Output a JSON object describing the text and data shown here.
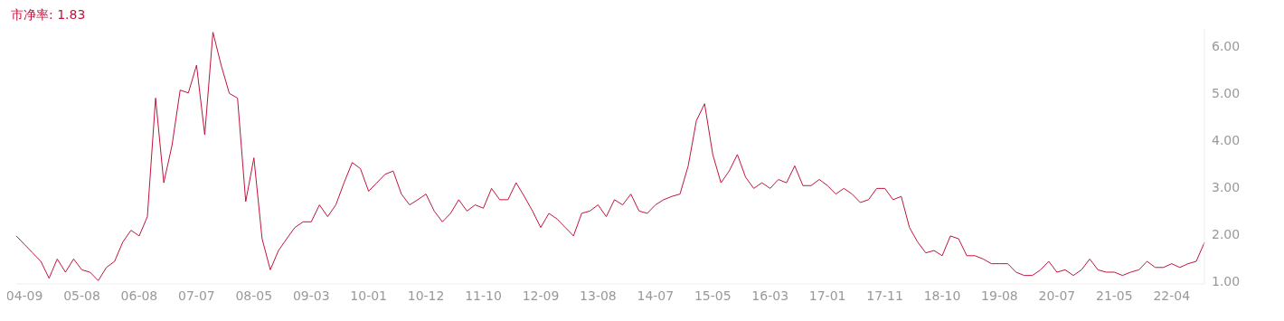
{
  "chart_data": {
    "type": "line",
    "title": "市净率: 1.83",
    "categories": [
      null,
      "04-09",
      null,
      null,
      null,
      null,
      null,
      null,
      "05-08",
      null,
      null,
      null,
      null,
      null,
      null,
      "06-08",
      null,
      null,
      null,
      null,
      null,
      null,
      "07-07",
      null,
      null,
      null,
      null,
      null,
      null,
      "08-05",
      null,
      null,
      null,
      null,
      null,
      null,
      "09-03",
      null,
      null,
      null,
      null,
      null,
      null,
      "10-01",
      null,
      null,
      null,
      null,
      null,
      null,
      "10-12",
      null,
      null,
      null,
      null,
      null,
      null,
      "11-10",
      null,
      null,
      null,
      null,
      null,
      null,
      "12-09",
      null,
      null,
      null,
      null,
      null,
      null,
      "13-08",
      null,
      null,
      null,
      null,
      null,
      null,
      "14-07",
      null,
      null,
      null,
      null,
      null,
      null,
      "15-05",
      null,
      null,
      null,
      null,
      null,
      null,
      "16-03",
      null,
      null,
      null,
      null,
      null,
      null,
      "17-01",
      null,
      null,
      null,
      null,
      null,
      null,
      "17-11",
      null,
      null,
      null,
      null,
      null,
      null,
      "18-10",
      null,
      null,
      null,
      null,
      null,
      null,
      "19-08",
      null,
      null,
      null,
      null,
      null,
      null,
      "20-07",
      null,
      null,
      null,
      null,
      null,
      null,
      "21-05",
      null,
      null,
      null,
      null,
      null,
      null,
      "22-04",
      null,
      null,
      null,
      null
    ],
    "series": [
      {
        "color": "#c0143c",
        "values": [
          1.97,
          1.79,
          1.61,
          1.43,
          1.07,
          1.48,
          1.2,
          1.48,
          1.25,
          1.2,
          1.02,
          1.3,
          1.43,
          1.84,
          2.09,
          1.97,
          2.38,
          4.9,
          3.1,
          3.89,
          5.07,
          5.01,
          5.6,
          4.12,
          6.3,
          5.6,
          5.0,
          4.9,
          2.7,
          3.63,
          1.91,
          1.25,
          1.66,
          1.91,
          2.15,
          2.27,
          2.27,
          2.63,
          2.38,
          2.63,
          3.1,
          3.53,
          3.4,
          2.92,
          3.1,
          3.28,
          3.35,
          2.86,
          2.63,
          2.74,
          2.86,
          2.5,
          2.27,
          2.45,
          2.74,
          2.5,
          2.63,
          2.56,
          2.98,
          2.74,
          2.74,
          3.1,
          2.81,
          2.5,
          2.15,
          2.45,
          2.33,
          2.15,
          1.97,
          2.45,
          2.5,
          2.63,
          2.38,
          2.74,
          2.63,
          2.86,
          2.5,
          2.45,
          2.63,
          2.74,
          2.81,
          2.86,
          3.46,
          4.42,
          4.78,
          3.7,
          3.1,
          3.35,
          3.7,
          3.22,
          2.98,
          3.1,
          2.98,
          3.17,
          3.1,
          3.46,
          3.04,
          3.04,
          3.17,
          3.04,
          2.86,
          2.98,
          2.86,
          2.68,
          2.74,
          2.98,
          2.98,
          2.74,
          2.81,
          2.15,
          1.84,
          1.61,
          1.66,
          1.55,
          1.97,
          1.91,
          1.55,
          1.55,
          1.48,
          1.38,
          1.38,
          1.38,
          1.2,
          1.13,
          1.13,
          1.25,
          1.43,
          1.2,
          1.25,
          1.13,
          1.25,
          1.48,
          1.25,
          1.2,
          1.2,
          1.13,
          1.2,
          1.25,
          1.43,
          1.3,
          1.3,
          1.38,
          1.3,
          1.38,
          1.43,
          1.83
        ]
      }
    ],
    "ylim": [
      0.95,
      6.37
    ],
    "yticks": [
      {
        "value": 1,
        "label": "1.00"
      },
      {
        "value": 2,
        "label": "2.00"
      },
      {
        "value": 3,
        "label": "3.00"
      },
      {
        "value": 4,
        "label": "4.00"
      },
      {
        "value": 5,
        "label": "5.00"
      },
      {
        "value": 6,
        "label": "6.00"
      }
    ],
    "marker": "none",
    "line_style": "solid"
  }
}
